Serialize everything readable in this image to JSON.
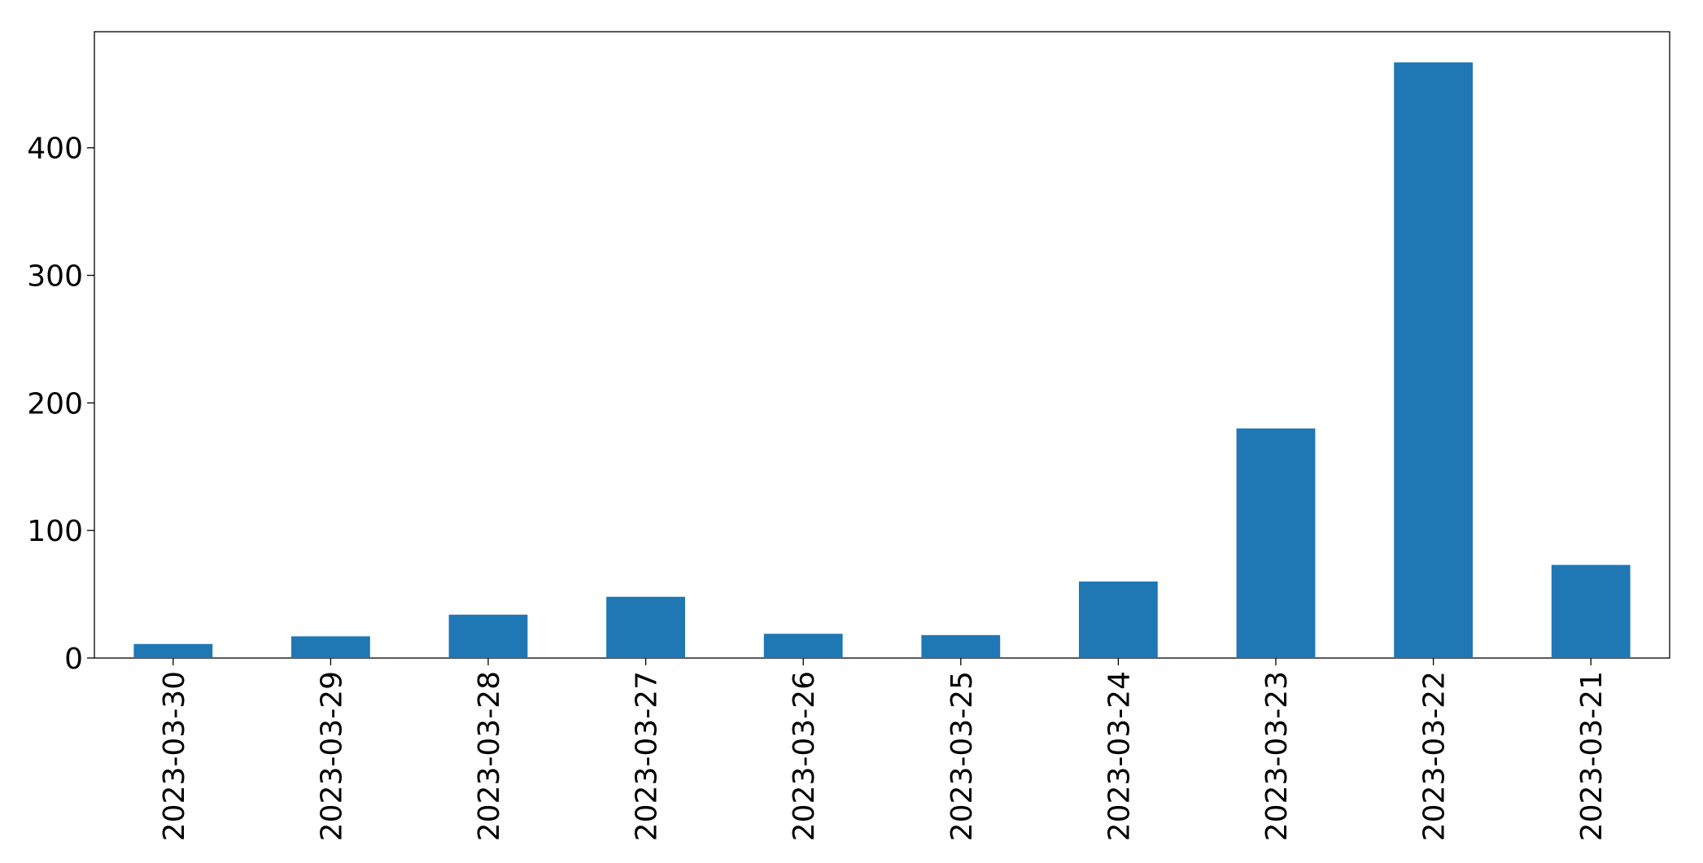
{
  "chart_data": {
    "type": "bar",
    "categories": [
      "2023-03-30",
      "2023-03-29",
      "2023-03-28",
      "2023-03-27",
      "2023-03-26",
      "2023-03-25",
      "2023-03-24",
      "2023-03-23",
      "2023-03-22",
      "2023-03-21"
    ],
    "values": [
      11,
      17,
      34,
      48,
      19,
      18,
      60,
      180,
      467,
      73
    ],
    "color": "#1f77b4",
    "ylim": [
      0,
      491
    ],
    "yticks": [
      0,
      100,
      200,
      300,
      400
    ],
    "grid": false
  }
}
